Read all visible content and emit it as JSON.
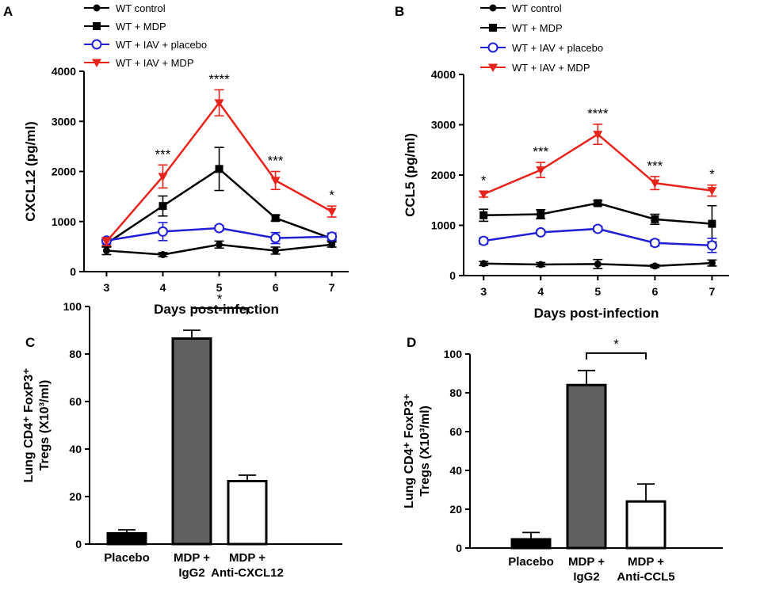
{
  "colors": {
    "wt_control": "#000000",
    "wt_mdp": "#000000",
    "iav_placebo": "#1f1fd6",
    "iav_mdp": "#e8231b",
    "bar_mdp": "#616161"
  },
  "chart_data": [
    {
      "panel": "A",
      "type": "line",
      "xlabel": "Days post-infection",
      "ylabel": "CXCL12 (pg/ml)",
      "x": [
        3,
        4,
        5,
        6,
        7
      ],
      "xticks": [
        "3",
        "4",
        "5",
        "6",
        "7"
      ],
      "xlim": [
        2.6,
        7.3
      ],
      "ylim": [
        0,
        4000
      ],
      "yticks": [
        "0",
        "1000",
        "2000",
        "3000",
        "4000"
      ],
      "legend": [
        "WT control",
        "WT + MDP",
        "WT + IAV + placebo",
        "WT + IAV + MDP"
      ],
      "series": [
        {
          "name": "WT control",
          "values": [
            420,
            340,
            540,
            420,
            540
          ],
          "errors": [
            80,
            40,
            70,
            70,
            50
          ]
        },
        {
          "name": "WT + MDP",
          "values": [
            560,
            1310,
            2050,
            1070,
            660
          ],
          "errors": [
            70,
            200,
            430,
            60,
            40
          ]
        },
        {
          "name": "WT + IAV + placebo",
          "values": [
            620,
            800,
            870,
            670,
            700
          ],
          "errors": [
            60,
            180,
            50,
            110,
            70
          ]
        },
        {
          "name": "WT + IAV + MDP",
          "values": [
            600,
            1900,
            3370,
            1820,
            1200
          ],
          "errors": [
            80,
            230,
            260,
            180,
            110
          ]
        }
      ],
      "significance": [
        "",
        "***",
        "****",
        "***",
        "*"
      ]
    },
    {
      "panel": "B",
      "type": "line",
      "xlabel": "Days post-infection",
      "ylabel": "CCL5 (pg/ml)",
      "x": [
        3,
        4,
        5,
        6,
        7
      ],
      "xticks": [
        "3",
        "4",
        "5",
        "6",
        "7"
      ],
      "xlim": [
        2.65,
        7.3
      ],
      "ylim": [
        0,
        4000
      ],
      "yticks": [
        "0",
        "1000",
        "2000",
        "3000",
        "4000"
      ],
      "legend": [
        "WT control",
        "WT + MDP",
        "WT + IAV + placebo",
        "WT + IAV + MDP"
      ],
      "series": [
        {
          "name": "WT control",
          "values": [
            240,
            220,
            230,
            190,
            250
          ],
          "errors": [
            40,
            40,
            90,
            30,
            60
          ]
        },
        {
          "name": "WT + MDP",
          "values": [
            1200,
            1220,
            1440,
            1120,
            1030
          ],
          "errors": [
            120,
            90,
            50,
            100,
            360
          ]
        },
        {
          "name": "WT + IAV + placebo",
          "values": [
            690,
            860,
            930,
            650,
            600
          ],
          "errors": [
            60,
            40,
            50,
            60,
            140
          ]
        },
        {
          "name": "WT + IAV + MDP",
          "values": [
            1620,
            2100,
            2810,
            1840,
            1690
          ],
          "errors": [
            60,
            150,
            200,
            130,
            110
          ]
        }
      ],
      "significance": [
        "*",
        "***",
        "****",
        "***",
        "*"
      ]
    },
    {
      "panel": "C",
      "type": "bar",
      "ylabel_line1": "Lung CD4⁺ FoxP3⁺",
      "ylabel_line2": "Tregs (X10³/ml)",
      "categories": [
        [
          "Placebo"
        ],
        [
          "MDP +",
          "IgG2"
        ],
        [
          "MDP +",
          "Anti-CXCL12"
        ]
      ],
      "values": [
        4.5,
        86.5,
        26.5
      ],
      "errors": [
        1.5,
        3.5,
        2.5
      ],
      "ylim": [
        0,
        100
      ],
      "yticks": [
        "0",
        "20",
        "40",
        "60",
        "80",
        "100"
      ],
      "significance": {
        "from": 1,
        "to": 2,
        "label": "*"
      }
    },
    {
      "panel": "D",
      "type": "bar",
      "ylabel_line1": "Lung CD4⁺ FoxP3⁺",
      "ylabel_line2": "Tregs (X10³/ml)",
      "categories": [
        [
          "Placebo"
        ],
        [
          "MDP +",
          "IgG2"
        ],
        [
          "MDP +",
          "Anti-CCL5"
        ]
      ],
      "values": [
        4.5,
        84,
        24
      ],
      "errors": [
        3.5,
        7.5,
        9
      ],
      "ylim": [
        0,
        100
      ],
      "yticks": [
        "0",
        "20",
        "40",
        "60",
        "80",
        "100"
      ],
      "significance": {
        "from": 1,
        "to": 2,
        "label": "*"
      }
    }
  ]
}
